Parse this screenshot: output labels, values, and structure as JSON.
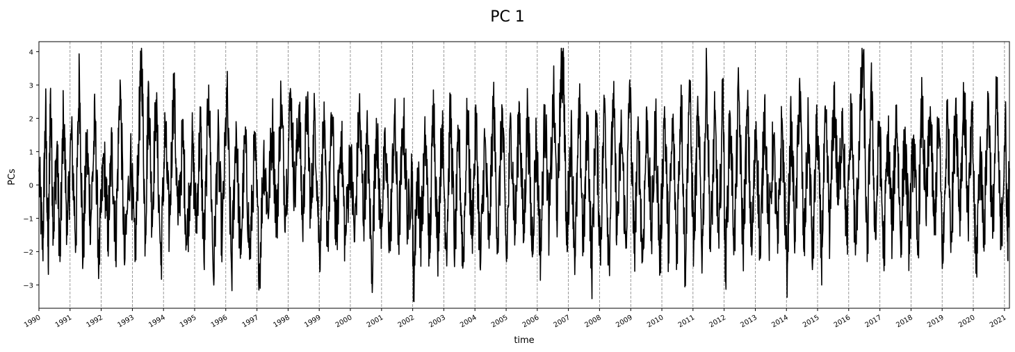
{
  "chart_data": {
    "type": "line",
    "title": "PC 1",
    "xlabel": "time",
    "ylabel": "PCs",
    "x_start": "1990-01-01",
    "x_end": "2021-02-28",
    "xlim": [
      "1990-01-01",
      "2021-02-28"
    ],
    "ylim": [
      -3.7,
      4.3
    ],
    "yticks": [
      -3,
      -2,
      -1,
      0,
      1,
      2,
      3,
      4
    ],
    "ytick_labels": [
      "−3",
      "−2",
      "−1",
      "0",
      "1",
      "2",
      "3",
      "4"
    ],
    "xtick_labels": [
      "1990",
      "1991",
      "1992",
      "1993",
      "1994",
      "1995",
      "1996",
      "1997",
      "1998",
      "1999",
      "2000",
      "2001",
      "2002",
      "2003",
      "2004",
      "2005",
      "2006",
      "2007",
      "2008",
      "2009",
      "2010",
      "2011",
      "2012",
      "2013",
      "2014",
      "2015",
      "2016",
      "2017",
      "2018",
      "2019",
      "2020",
      "2021"
    ],
    "vertical_lines": [
      "1991-01-01",
      "1992-01-01",
      "1993-01-01",
      "1994-01-01",
      "1995-01-01",
      "1996-01-01",
      "1997-01-01",
      "1998-01-01",
      "1999-01-01",
      "2000-01-01",
      "2001-01-01",
      "2002-01-01",
      "2003-01-01",
      "2004-01-01",
      "2005-01-01",
      "2006-01-01",
      "2007-01-01",
      "2008-01-01",
      "2009-01-01",
      "2010-01-01",
      "2011-01-01",
      "2012-01-01",
      "2013-01-01",
      "2014-01-01",
      "2015-01-01",
      "2016-01-01",
      "2017-01-01",
      "2018-01-01",
      "2019-01-01",
      "2020-01-01",
      "2021-01-01"
    ],
    "grid": false,
    "series": [
      {
        "color": "#000000",
        "points": [
          [
            "1990-01-01",
            0.4
          ],
          [
            "1990-02-15",
            -1.9
          ],
          [
            "1990-03-20",
            2.3
          ],
          [
            "1990-04-20",
            -2.45
          ],
          [
            "1990-05-15",
            2.75
          ],
          [
            "1990-06-20",
            -1.3
          ],
          [
            "1990-08-01",
            1.2
          ],
          [
            "1990-09-05",
            -2.3
          ],
          [
            "1990-10-15",
            2.2
          ],
          [
            "1990-12-01",
            -1.5
          ],
          [
            "1991-01-15",
            1.6
          ],
          [
            "1991-03-10",
            -1.7
          ],
          [
            "1991-04-20",
            3.45
          ],
          [
            "1991-06-01",
            -2.3
          ],
          [
            "1991-07-15",
            1.3
          ],
          [
            "1991-09-01",
            -1.1
          ],
          [
            "1991-10-20",
            2.0
          ],
          [
            "1991-12-05",
            -2.4
          ],
          [
            "1992-02-01",
            0.9
          ],
          [
            "1992-03-20",
            -1.5
          ],
          [
            "1992-05-05",
            1.2
          ],
          [
            "1992-06-20",
            -1.8
          ],
          [
            "1992-08-10",
            3.15
          ],
          [
            "1992-10-01",
            -2.4
          ],
          [
            "1992-12-10",
            1.0
          ],
          [
            "1993-02-01",
            -2.3
          ],
          [
            "1993-03-20",
            1.7
          ],
          [
            "1993-04-20",
            3.9
          ],
          [
            "1993-06-01",
            -1.6
          ],
          [
            "1993-07-10",
            3.05
          ],
          [
            "1993-08-20",
            -1.1
          ],
          [
            "1993-10-05",
            2.55
          ],
          [
            "1993-12-01",
            -2.4
          ],
          [
            "1994-01-20",
            1.8
          ],
          [
            "1994-03-10",
            -1.4
          ],
          [
            "1994-05-01",
            3.1
          ],
          [
            "1994-06-20",
            -1.2
          ],
          [
            "1994-08-15",
            1.5
          ],
          [
            "1994-10-01",
            -1.8
          ],
          [
            "1994-12-01",
            1.3
          ],
          [
            "1995-01-20",
            -1.2
          ],
          [
            "1995-03-10",
            1.9
          ],
          [
            "1995-04-20",
            -2.3
          ],
          [
            "1995-06-15",
            3.0
          ],
          [
            "1995-08-10",
            -2.8
          ],
          [
            "1995-10-01",
            1.4
          ],
          [
            "1995-11-20",
            -1.7
          ],
          [
            "1996-01-15",
            2.8
          ],
          [
            "1996-03-10",
            -2.7
          ],
          [
            "1996-05-01",
            1.9
          ],
          [
            "1996-06-20",
            -2.2
          ],
          [
            "1996-08-15",
            1.4
          ],
          [
            "1996-10-10",
            -2.2
          ],
          [
            "1996-12-05",
            1.2
          ],
          [
            "1997-02-01",
            -2.6
          ],
          [
            "1997-03-20",
            1.0
          ],
          [
            "1997-05-10",
            -0.8
          ],
          [
            "1997-07-01",
            1.9
          ],
          [
            "1997-08-20",
            -1.3
          ],
          [
            "1997-10-10",
            2.65
          ],
          [
            "1997-12-01",
            -0.8
          ],
          [
            "1998-02-01",
            2.75
          ],
          [
            "1998-03-20",
            -0.4
          ],
          [
            "1998-05-10",
            2.4
          ],
          [
            "1998-06-20",
            -1.3
          ],
          [
            "1998-08-10",
            2.55
          ],
          [
            "1998-09-25",
            -1.0
          ],
          [
            "1998-11-10",
            2.3
          ],
          [
            "1999-01-05",
            -2.2
          ],
          [
            "1999-02-20",
            1.9
          ],
          [
            "1999-04-10",
            -1.6
          ],
          [
            "1999-06-01",
            2.1
          ],
          [
            "1999-07-20",
            -1.7
          ],
          [
            "1999-09-15",
            1.6
          ],
          [
            "1999-11-01",
            -1.8
          ],
          [
            "2000-01-01",
            1.1
          ],
          [
            "2000-02-20",
            -1.7
          ],
          [
            "2000-04-15",
            2.35
          ],
          [
            "2000-06-05",
            -1.0
          ],
          [
            "2000-07-20",
            1.5
          ],
          [
            "2000-09-10",
            -2.7
          ],
          [
            "2000-11-01",
            2.0
          ],
          [
            "2000-12-20",
            -1.3
          ],
          [
            "2001-02-15",
            1.0
          ],
          [
            "2001-04-10",
            -1.8
          ],
          [
            "2001-06-01",
            2.1
          ],
          [
            "2001-07-20",
            -1.6
          ],
          [
            "2001-09-15",
            2.05
          ],
          [
            "2001-11-05",
            -1.2
          ],
          [
            "2001-12-25",
            0.6
          ],
          [
            "2002-01-10",
            -3.3
          ],
          [
            "2002-02-25",
            0.5
          ],
          [
            "2002-04-10",
            -1.5
          ],
          [
            "2002-06-01",
            1.5
          ],
          [
            "2002-07-20",
            -2.2
          ],
          [
            "2002-09-01",
            2.85
          ],
          [
            "2002-10-20",
            -2.0
          ],
          [
            "2002-12-10",
            1.8
          ],
          [
            "2003-02-01",
            -1.9
          ],
          [
            "2003-03-20",
            2.3
          ],
          [
            "2003-05-10",
            -2.0
          ],
          [
            "2003-06-25",
            1.5
          ],
          [
            "2003-08-15",
            -2.4
          ],
          [
            "2003-10-05",
            2.25
          ],
          [
            "2003-11-25",
            -1.6
          ],
          [
            "2004-01-15",
            2.0
          ],
          [
            "2004-03-05",
            -2.55
          ],
          [
            "2004-04-25",
            1.4
          ],
          [
            "2004-06-15",
            -1.9
          ],
          [
            "2004-08-05",
            2.6
          ],
          [
            "2004-09-25",
            -1.8
          ],
          [
            "2004-11-15",
            2.3
          ],
          [
            "2005-01-05",
            -2.3
          ],
          [
            "2005-02-25",
            2.0
          ],
          [
            "2005-04-15",
            -1.5
          ],
          [
            "2005-06-05",
            2.45
          ],
          [
            "2005-07-25",
            -1.7
          ],
          [
            "2005-09-10",
            2.35
          ],
          [
            "2005-11-01",
            -2.0
          ],
          [
            "2005-12-20",
            1.4
          ],
          [
            "2006-02-10",
            -2.1
          ],
          [
            "2006-04-01",
            2.4
          ],
          [
            "2006-05-20",
            -1.3
          ],
          [
            "2006-07-10",
            2.75
          ],
          [
            "2006-08-25",
            -1.0
          ],
          [
            "2006-10-05",
            3.35
          ],
          [
            "2006-11-05",
            3.5
          ],
          [
            "2006-12-10",
            -1.8
          ],
          [
            "2007-02-01",
            1.6
          ],
          [
            "2007-03-20",
            -2.2
          ],
          [
            "2007-05-10",
            2.3
          ],
          [
            "2007-06-25",
            -1.9
          ],
          [
            "2007-08-15",
            2.05
          ],
          [
            "2007-10-01",
            -2.7
          ],
          [
            "2007-11-20",
            2.2
          ],
          [
            "2008-01-10",
            -2.0
          ],
          [
            "2008-03-01",
            2.6
          ],
          [
            "2008-04-20",
            -2.4
          ],
          [
            "2008-06-10",
            2.75
          ],
          [
            "2008-07-25",
            -1.5
          ],
          [
            "2008-09-15",
            1.7
          ],
          [
            "2008-11-05",
            -1.9
          ],
          [
            "2008-12-20",
            3.15
          ],
          [
            "2009-02-10",
            -2.05
          ],
          [
            "2009-04-01",
            1.6
          ],
          [
            "2009-05-20",
            -2.3
          ],
          [
            "2009-07-10",
            2.15
          ],
          [
            "2009-09-01",
            -1.6
          ],
          [
            "2009-10-20",
            2.0
          ],
          [
            "2009-12-10",
            -2.4
          ],
          [
            "2010-02-01",
            2.35
          ],
          [
            "2010-03-20",
            -1.8
          ],
          [
            "2010-05-10",
            1.9
          ],
          [
            "2010-06-25",
            -2.0
          ],
          [
            "2010-08-15",
            3.0
          ],
          [
            "2010-10-01",
            -2.6
          ],
          [
            "2010-11-20",
            3.15
          ],
          [
            "2011-01-10",
            -1.9
          ],
          [
            "2011-03-01",
            2.2
          ],
          [
            "2011-04-20",
            -2.1
          ],
          [
            "2011-06-10",
            3.55
          ],
          [
            "2011-07-25",
            -2.0
          ],
          [
            "2011-09-15",
            2.0
          ],
          [
            "2011-11-01",
            -1.9
          ],
          [
            "2011-12-20",
            3.2
          ],
          [
            "2012-01-15",
            -2.9
          ],
          [
            "2012-03-10",
            2.15
          ],
          [
            "2012-05-01",
            -1.8
          ],
          [
            "2012-06-20",
            2.9
          ],
          [
            "2012-08-10",
            -1.9
          ],
          [
            "2012-10-01",
            2.3
          ],
          [
            "2012-11-20",
            -2.1
          ],
          [
            "2013-01-10",
            1.9
          ],
          [
            "2013-03-01",
            -2.2
          ],
          [
            "2013-04-20",
            2.55
          ],
          [
            "2013-06-10",
            -1.6
          ],
          [
            "2013-08-01",
            1.5
          ],
          [
            "2013-09-20",
            -2.05
          ],
          [
            "2013-11-10",
            2.0
          ],
          [
            "2014-01-05",
            -2.6
          ],
          [
            "2014-02-25",
            1.9
          ],
          [
            "2014-04-15",
            -1.7
          ],
          [
            "2014-06-05",
            3.2
          ],
          [
            "2014-07-25",
            -2.0
          ],
          [
            "2014-09-15",
            1.8
          ],
          [
            "2014-11-05",
            -2.3
          ],
          [
            "2014-12-25",
            2.0
          ],
          [
            "2015-02-15",
            -2.2
          ],
          [
            "2015-04-05",
            1.9
          ],
          [
            "2015-05-25",
            -1.4
          ],
          [
            "2015-07-15",
            2.75
          ],
          [
            "2015-09-01",
            -0.6
          ],
          [
            "2015-10-20",
            2.3
          ],
          [
            "2015-12-10",
            -1.8
          ],
          [
            "2016-02-01",
            2.4
          ],
          [
            "2016-03-20",
            -2.1
          ],
          [
            "2016-05-10",
            1.9
          ],
          [
            "2016-06-20",
            3.9
          ],
          [
            "2016-08-05",
            -2.3
          ],
          [
            "2016-09-20",
            3.15
          ],
          [
            "2016-11-10",
            -1.6
          ],
          [
            "2016-12-25",
            1.9
          ],
          [
            "2017-02-15",
            -2.2
          ],
          [
            "2017-04-05",
            1.6
          ],
          [
            "2017-05-25",
            -1.5
          ],
          [
            "2017-07-15",
            2.4
          ],
          [
            "2017-09-01",
            -1.7
          ],
          [
            "2017-10-20",
            1.4
          ],
          [
            "2017-12-10",
            -1.7
          ],
          [
            "2018-02-01",
            1.5
          ],
          [
            "2018-03-20",
            -2.1
          ],
          [
            "2018-05-10",
            2.55
          ],
          [
            "2018-06-25",
            -1.0
          ],
          [
            "2018-08-15",
            2.35
          ],
          [
            "2018-10-01",
            -1.5
          ],
          [
            "2018-11-20",
            2.0
          ],
          [
            "2019-01-10",
            -2.35
          ],
          [
            "2019-03-01",
            2.2
          ],
          [
            "2019-04-20",
            -1.5
          ],
          [
            "2019-06-10",
            2.6
          ],
          [
            "2019-07-25",
            -0.9
          ],
          [
            "2019-09-15",
            2.8
          ],
          [
            "2019-11-01",
            -1.0
          ],
          [
            "2019-12-20",
            1.9
          ],
          [
            "2020-02-01",
            -2.65
          ],
          [
            "2020-03-20",
            1.0
          ],
          [
            "2020-05-10",
            -1.4
          ],
          [
            "2020-06-25",
            2.75
          ],
          [
            "2020-08-15",
            -1.6
          ],
          [
            "2020-10-01",
            2.85
          ],
          [
            "2020-11-20",
            -1.9
          ],
          [
            "2021-01-10",
            2.1
          ],
          [
            "2021-02-05",
            -1.7
          ],
          [
            "2021-02-28",
            0.5
          ]
        ]
      }
    ]
  }
}
